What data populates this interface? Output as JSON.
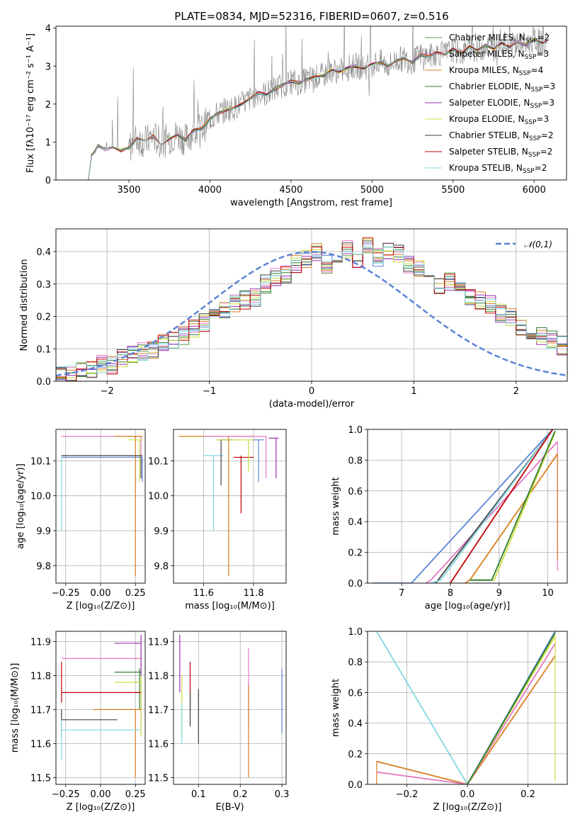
{
  "title": "PLATE=0834, MJD=52316, FIBERID=0607, z=0.516",
  "colors": {
    "Chabrier MILES": "#5a9a4a",
    "Salpeter MILES": "#e377c2",
    "Kroupa MILES": "#d97f1f",
    "Chabrier ELODIE": "#2e7d32",
    "Salpeter ELODIE": "#9b2fae",
    "Kroupa ELODIE": "#cddc39",
    "Chabrier STELIB": "#404040",
    "Salpeter STELIB": "#c00000",
    "Kroupa STELIB": "#80d8e0",
    "model_blue": "#5b84d6",
    "data": "#7f7f7f",
    "gauss": "#5b84d6"
  },
  "legend": [
    {
      "name": "Chabrier MILES",
      "n": "2"
    },
    {
      "name": "Salpeter MILES",
      "n": "3"
    },
    {
      "name": "Kroupa MILES",
      "n": "4"
    },
    {
      "name": "Chabrier ELODIE",
      "n": "3"
    },
    {
      "name": "Salpeter ELODIE",
      "n": "3"
    },
    {
      "name": "Kroupa ELODIE",
      "n": "3"
    },
    {
      "name": "Chabrier STELIB",
      "n": "2"
    },
    {
      "name": "Salpeter STELIB",
      "n": "2"
    },
    {
      "name": "Kroupa STELIB",
      "n": "2"
    }
  ],
  "legend_prefix": ", N",
  "legend_sub": "SSP",
  "legend_eq": "=",
  "gauss_legend": "𝒩(0,1)",
  "chart_data": [
    {
      "id": "spectrum",
      "type": "line",
      "xlabel": "wavelength [Angstrom, rest frame]",
      "ylabel": "Flux [fλ10⁻¹⁷ erg cm⁻² s⁻¹ A⁻¹]",
      "xlim": [
        3050,
        6200
      ],
      "ylim": [
        0,
        4.05
      ],
      "xticks": [
        3500,
        4000,
        4500,
        5000,
        5500,
        6000
      ],
      "yticks": [
        0,
        1,
        2,
        3,
        4
      ],
      "model_x": [
        3250,
        3270,
        3290,
        3310,
        3350,
        3400,
        3450,
        3500,
        3550,
        3600,
        3650,
        3700,
        3750,
        3800,
        3850,
        3900,
        3950,
        4000,
        4050,
        4100,
        4150,
        4200,
        4250,
        4300,
        4350,
        4400,
        4450,
        4500,
        4550,
        4600,
        4650,
        4700,
        4750,
        4800,
        4850,
        4900,
        4950,
        5000,
        5050,
        5100,
        5150,
        5200,
        5250,
        5300,
        5350,
        5400,
        5450,
        5500,
        5550,
        5600,
        5650,
        5700,
        5750,
        5800,
        5850,
        5900,
        5950,
        6000,
        6050,
        6080
      ],
      "model_y": [
        0.0,
        0.65,
        0.75,
        0.9,
        0.8,
        0.88,
        0.78,
        0.85,
        1.1,
        1.0,
        1.15,
        0.95,
        1.1,
        1.2,
        1.05,
        1.3,
        1.35,
        1.6,
        1.75,
        1.85,
        1.9,
        2.0,
        2.15,
        2.3,
        2.25,
        2.4,
        2.5,
        2.6,
        2.55,
        2.65,
        2.7,
        2.75,
        2.9,
        2.85,
        2.95,
        3.0,
        2.95,
        3.05,
        3.1,
        3.0,
        3.15,
        3.2,
        3.1,
        3.3,
        3.25,
        3.35,
        3.3,
        3.45,
        3.3,
        3.5,
        3.4,
        3.55,
        3.45,
        3.6,
        3.5,
        3.65,
        3.55,
        3.7,
        3.6,
        3.65
      ]
    },
    {
      "id": "residuals",
      "type": "step",
      "xlabel": "(data-model)/error",
      "ylabel": "Normed distribution",
      "xlim": [
        -2.5,
        2.5
      ],
      "ylim": [
        0,
        0.47
      ],
      "xticks": [
        -2,
        -1,
        0,
        1,
        2
      ],
      "xtick_labels": [
        "−2",
        "−1",
        "0",
        "1",
        "2"
      ],
      "yticks": [
        0.0,
        0.1,
        0.2,
        0.3,
        0.4
      ],
      "bin_width": 0.1,
      "bin_start": -2.5,
      "hist": [
        0.02,
        0.02,
        0.03,
        0.04,
        0.05,
        0.05,
        0.07,
        0.08,
        0.09,
        0.1,
        0.12,
        0.13,
        0.14,
        0.16,
        0.18,
        0.2,
        0.22,
        0.24,
        0.25,
        0.26,
        0.3,
        0.32,
        0.33,
        0.36,
        0.38,
        0.4,
        0.36,
        0.39,
        0.41,
        0.37,
        0.42,
        0.38,
        0.4,
        0.39,
        0.36,
        0.35,
        0.32,
        0.3,
        0.31,
        0.28,
        0.26,
        0.25,
        0.24,
        0.21,
        0.2,
        0.16,
        0.15,
        0.14,
        0.13,
        0.11
      ]
    },
    {
      "id": "age_vs_Z",
      "type": "errorbar",
      "xlabel": "Z [log₁₀(Z/Z⊙)]",
      "ylabel": "age  [log₁₀(age/yr)]",
      "xlim": [
        -0.32,
        0.32
      ],
      "ylim": [
        9.75,
        10.19
      ],
      "xticks": [
        -0.25,
        0.0,
        0.25
      ],
      "xtick_labels": [
        "−0.25",
        "0.00",
        "0.25"
      ],
      "yticks": [
        9.8,
        9.9,
        10.0,
        10.1
      ],
      "yticks_labels": [
        "9.8",
        "9.9",
        "10.0",
        "10.1"
      ]
    },
    {
      "id": "age_vs_mass",
      "type": "errorbar",
      "xlabel": "mass [log₁₀(M/M⊙)]",
      "xlim": [
        11.48,
        11.93
      ],
      "ylim": [
        9.75,
        10.19
      ],
      "xticks": [
        11.6,
        11.8
      ],
      "yticks": [
        9.8,
        9.9,
        10.0,
        10.1
      ]
    },
    {
      "id": "cum_age",
      "type": "line",
      "xlabel": "age  [log₁₀(age/yr)]",
      "ylabel": "mass weight",
      "xlim": [
        6.3,
        10.4
      ],
      "ylim": [
        0,
        1.0
      ],
      "xticks": [
        7,
        8,
        9,
        10
      ],
      "yticks": [
        0.0,
        0.2,
        0.4,
        0.6,
        0.8,
        1.0
      ]
    },
    {
      "id": "mass_vs_Z",
      "type": "errorbar",
      "xlabel": "Z [log₁₀(Z/Z⊙)]",
      "ylabel": "mass [log₁₀(M/M⊙)]",
      "xlim": [
        -0.32,
        0.32
      ],
      "ylim": [
        11.48,
        11.93
      ],
      "xticks": [
        -0.25,
        0.0,
        0.25
      ],
      "xtick_labels": [
        "−0.25",
        "0.00",
        "0.25"
      ],
      "yticks": [
        11.5,
        11.6,
        11.7,
        11.8,
        11.9
      ]
    },
    {
      "id": "mass_vs_EBV",
      "type": "errorbar",
      "xlabel": "E(B-V)",
      "xlim": [
        0.04,
        0.31
      ],
      "ylim": [
        11.48,
        11.93
      ],
      "xticks": [
        0.1,
        0.2,
        0.3
      ],
      "yticks": [
        11.5,
        11.6,
        11.7,
        11.8,
        11.9
      ]
    },
    {
      "id": "cum_Z",
      "type": "line",
      "xlabel": "Z [log₁₀(Z/Z⊙)]",
      "ylabel": "mass weight",
      "xlim": [
        -0.33,
        0.33
      ],
      "ylim": [
        0,
        1.0
      ],
      "xticks": [
        -0.2,
        0.0,
        0.2
      ],
      "xtick_labels": [
        "−0.2",
        "0.0",
        "0.2"
      ],
      "yticks": [
        0.0,
        0.2,
        0.4,
        0.6,
        0.8,
        1.0
      ]
    }
  ]
}
